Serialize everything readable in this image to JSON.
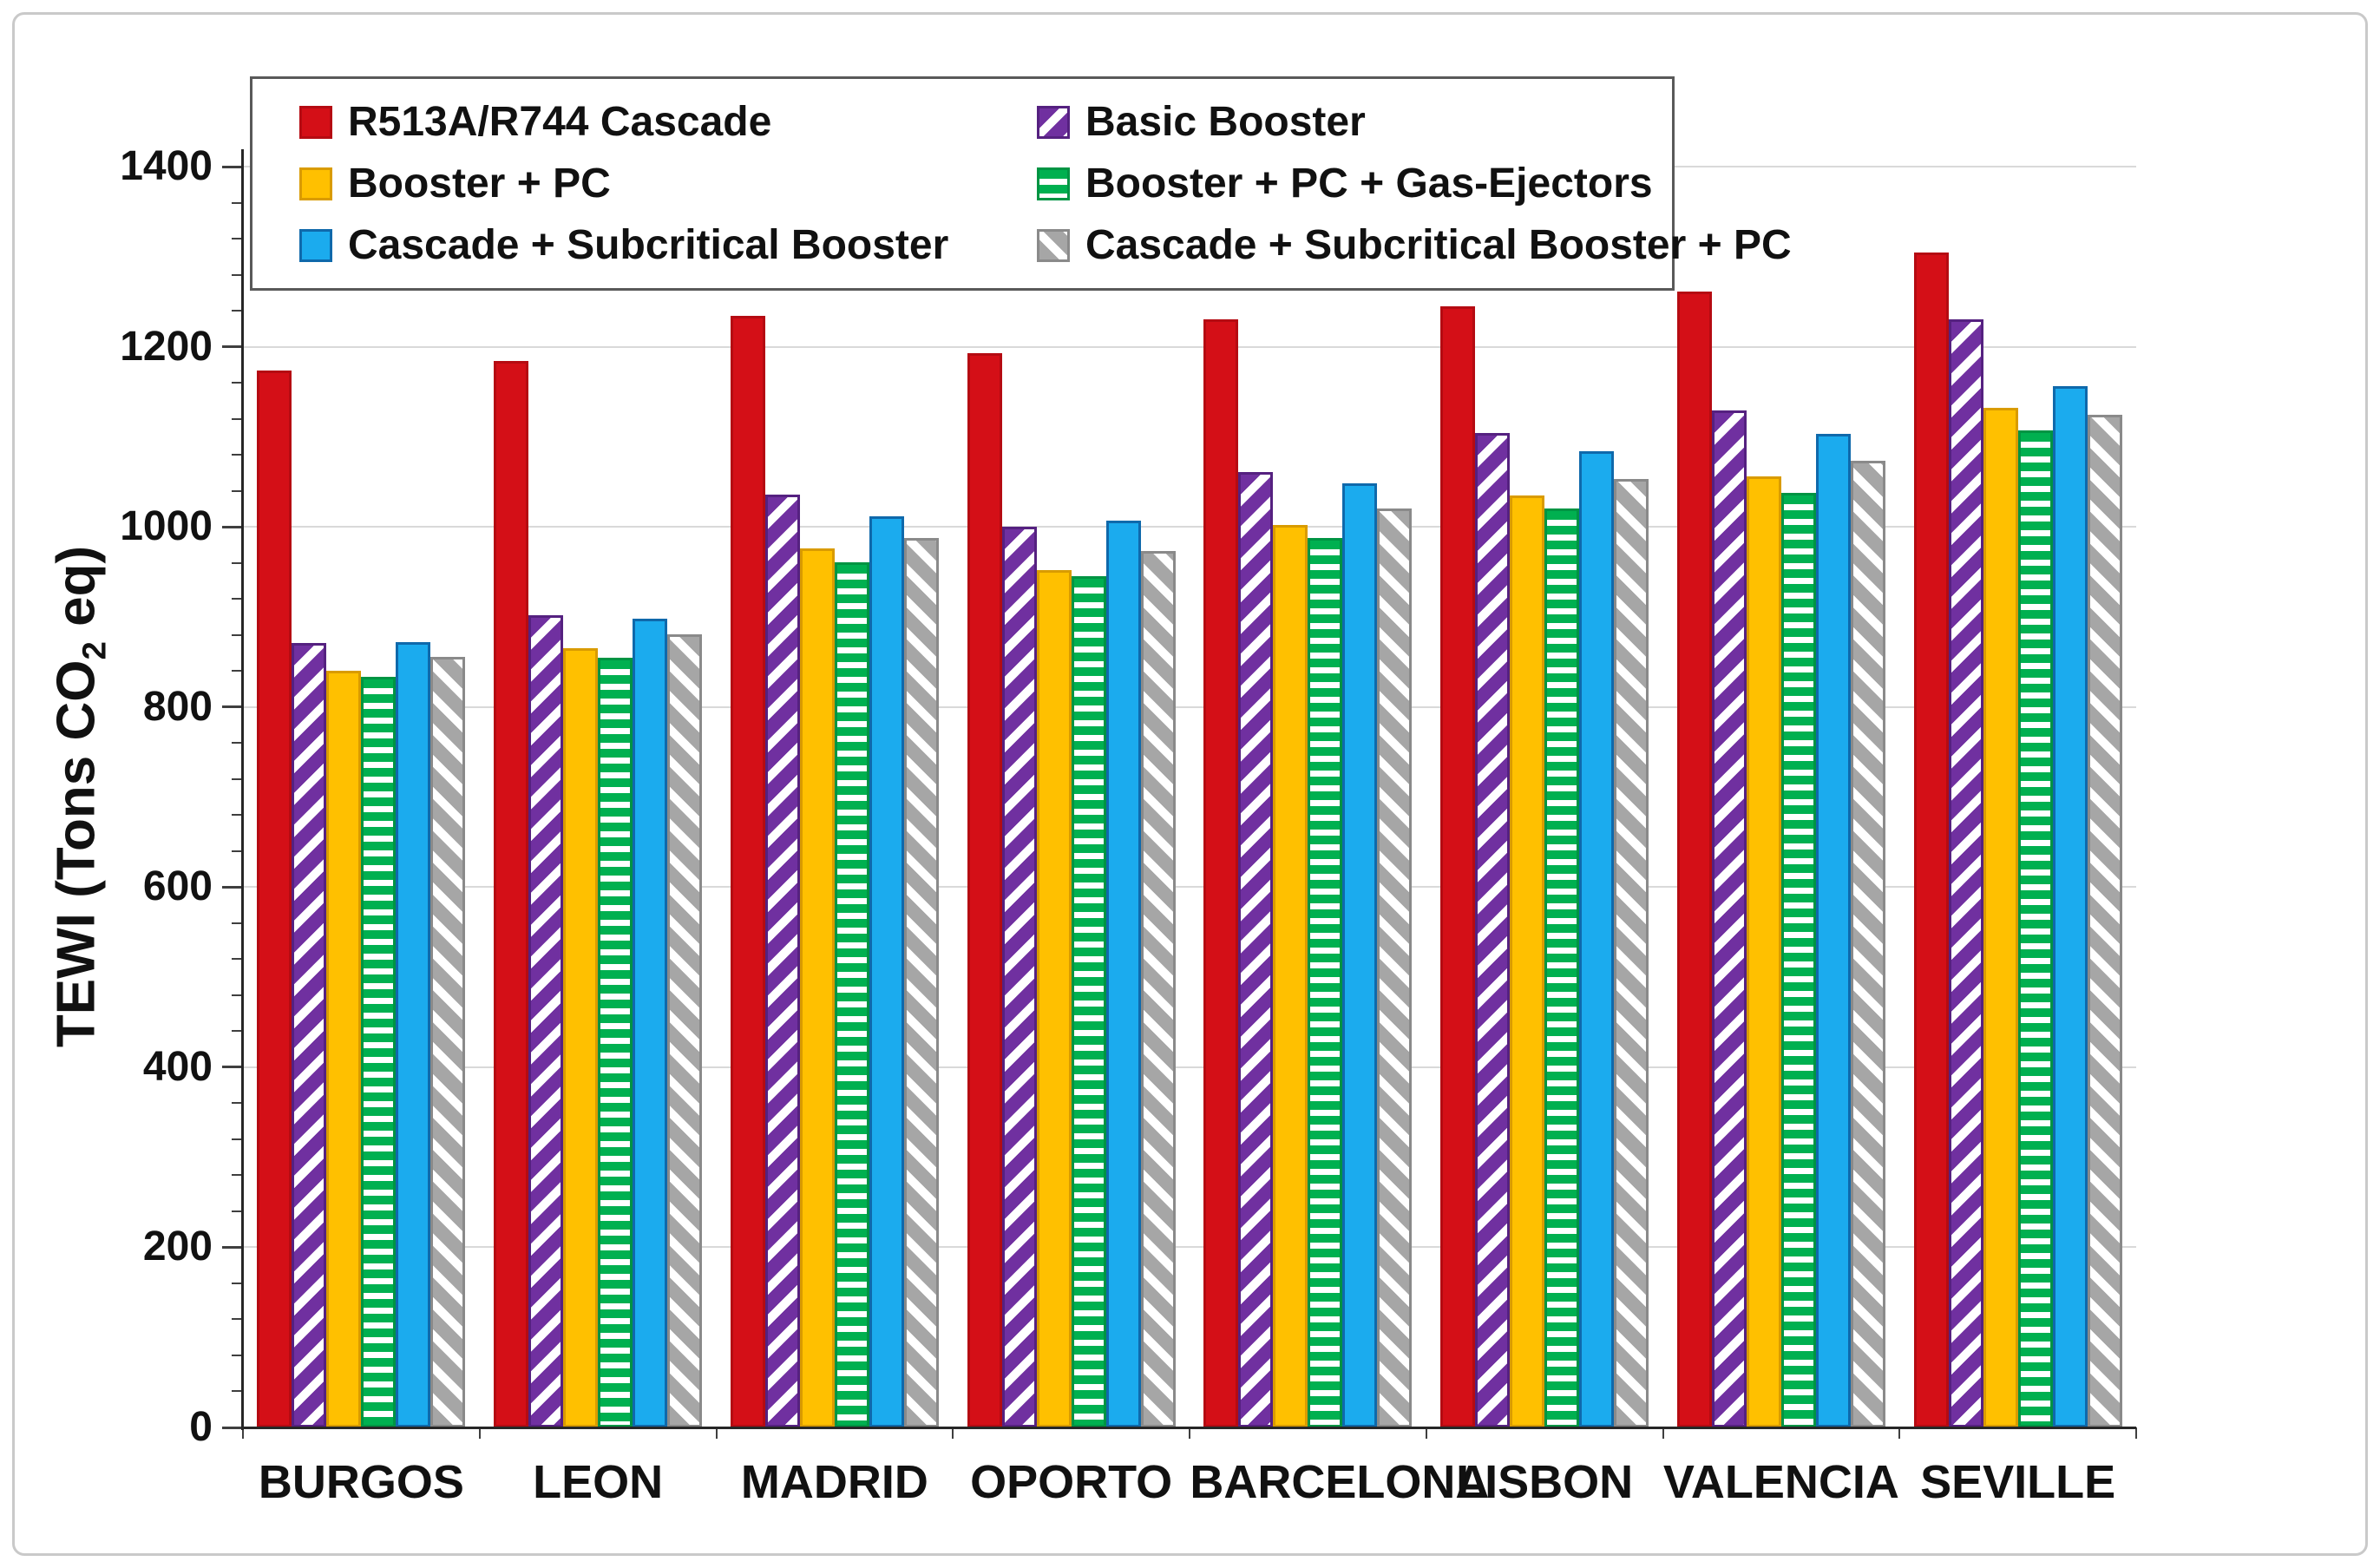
{
  "figure": {
    "background": "#ffffff",
    "frame_border_color": "#c9c9c9",
    "gridline_color": "#d9d9d9",
    "axis_color": "#262626",
    "text_color": "#111111"
  },
  "y_axis": {
    "title_pre": "TEWI (Tons CO",
    "title_sub": "2",
    "title_post": " eq)",
    "min": 0,
    "max": 1400,
    "major_step": 200,
    "minor_step": 40,
    "ticks": [
      0,
      200,
      400,
      600,
      800,
      1000,
      1200,
      1400
    ]
  },
  "chart_data": {
    "type": "bar",
    "title": "",
    "xlabel": "",
    "ylabel": "TEWI (Tons CO2 eq)",
    "ylim": [
      0,
      1400
    ],
    "grid": true,
    "legend_position": "top-left",
    "categories": [
      "BURGOS",
      "LEON",
      "MADRID",
      "OPORTO",
      "BARCELONA",
      "LISBON",
      "VALENCIA",
      "SEVILLE"
    ],
    "series": [
      {
        "name": "R513A/R744 Cascade",
        "pattern": "solid",
        "fill": "#d40f17",
        "stripe": "",
        "border": "#b50b12",
        "values": [
          1174,
          1184,
          1234,
          1193,
          1230,
          1245,
          1261,
          1305
        ]
      },
      {
        "name": "Basic Booster",
        "pattern": "diagonal-up",
        "fill": "#7030a0",
        "stripe": "#ffffff",
        "border": "#552180",
        "values": [
          871,
          902,
          1036,
          1000,
          1061,
          1104,
          1129,
          1230
        ]
      },
      {
        "name": "Booster + PC",
        "pattern": "solid",
        "fill": "#ffc000",
        "stripe": "",
        "border": "#d99b00",
        "values": [
          840,
          865,
          976,
          952,
          1002,
          1035,
          1056,
          1132
        ]
      },
      {
        "name": "Booster + PC + Gas-Ejectors",
        "pattern": "horizontal",
        "fill": "#00b050",
        "stripe": "#ffffff",
        "border": "#009443",
        "values": [
          833,
          855,
          961,
          945,
          988,
          1020,
          1038,
          1107
        ]
      },
      {
        "name": "Cascade + Subcritical Booster",
        "pattern": "solid",
        "fill": "#1babee",
        "stripe": "",
        "border": "#0f69ab",
        "values": [
          872,
          898,
          1012,
          1007,
          1048,
          1084,
          1103,
          1156
        ]
      },
      {
        "name": "Cascade + Subcritical Booster + PC",
        "pattern": "diagonal-down",
        "fill": "#a6a6a6",
        "stripe": "#ffffff",
        "border": "#8a8a8a",
        "values": [
          856,
          881,
          988,
          973,
          1020,
          1053,
          1073,
          1124
        ]
      }
    ]
  }
}
